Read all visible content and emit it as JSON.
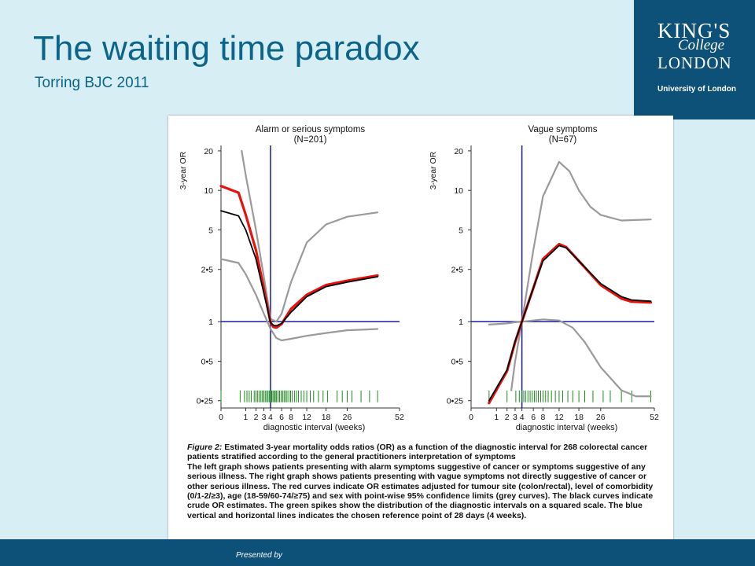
{
  "slide": {
    "title": "The waiting time paradox",
    "subtitle": "Torring  BJC 2011",
    "footer_text": "Presented by"
  },
  "logo": {
    "line1": "KING'S",
    "line2": "College",
    "line3": "LONDON",
    "line4": "University of London"
  },
  "caption": {
    "label": "Figure 2:",
    "heading": "Estimated 3-year mortality odds ratios (OR) as a function of the diagnostic interval for 268 colorectal cancer patients stratified according to the general practitioners interpretation of symptoms",
    "body": "The left graph shows patients presenting with alarm symptoms suggestive of cancer or symptoms suggestive of any serious illness. The right graph shows patients presenting with vague symptoms not directly suggestive of cancer or other serious illness. The red curves indicate OR estimates adjusted for tumour site (colon/rectal), level of comorbidity (0/1-2/≥3), age (18-59/60-74/≥75) and sex with point-wise 95% confidence limits (grey curves). The black curves indicate crude OR estimates. The green spikes show the distribution of the diagnostic intervals on a squared scale. The blue vertical and horizontal lines indicates the chosen reference point of 28 days (4 weeks)."
  },
  "colors": {
    "adjusted": "#e8120c",
    "crude": "#000000",
    "ci": "#9a9a9a",
    "reference": "#1a1aa6",
    "spikes": "#1f8a1f"
  },
  "chart_data": [
    {
      "type": "line",
      "title": "Alarm or serious symptoms",
      "subtitle": "(N=201)",
      "ylabel": "3-year OR",
      "xlabel": "diagnostic interval (weeks)",
      "y_scale": "log",
      "x_scale": "sqrt",
      "xlim": [
        0,
        52
      ],
      "ylim": [
        0.22,
        22
      ],
      "xticks": [
        0,
        1,
        2,
        3,
        4,
        6,
        8,
        12,
        18,
        26,
        52
      ],
      "xtick_labels": [
        "0",
        "1",
        "2",
        "3",
        "4",
        "6",
        "8",
        "12",
        "18",
        "26",
        "52"
      ],
      "yticks": [
        0.25,
        0.5,
        1,
        2.5,
        5,
        10,
        20
      ],
      "ytick_labels": [
        "0•25",
        "0•5",
        "1",
        "2•5",
        "5",
        "10",
        "20"
      ],
      "reference": {
        "x": 4,
        "y": 1
      },
      "series": [
        {
          "role": "adjusted",
          "x": [
            0,
            0.5,
            1,
            2,
            3,
            4,
            4.5,
            5,
            6,
            8,
            12,
            18,
            26,
            40
          ],
          "y": [
            10.8,
            9.6,
            6.5,
            3.5,
            1.8,
            0.98,
            0.91,
            0.9,
            0.96,
            1.25,
            1.6,
            1.9,
            2.05,
            2.25
          ]
        },
        {
          "role": "crude",
          "x": [
            0,
            0.5,
            1,
            2,
            3,
            4,
            4.5,
            5,
            6,
            8,
            12,
            18,
            26,
            40
          ],
          "y": [
            7.0,
            6.4,
            5.0,
            3.0,
            1.65,
            0.98,
            0.94,
            0.93,
            0.97,
            1.18,
            1.55,
            1.85,
            2.0,
            2.2
          ]
        },
        {
          "role": "ci-upper",
          "x": [
            0.7,
            1,
            2,
            3,
            4,
            5,
            6,
            8,
            12,
            18,
            26,
            40
          ],
          "y": [
            20,
            13,
            5,
            2.2,
            1.05,
            1.0,
            1.15,
            2.0,
            4.0,
            5.5,
            6.3,
            6.8
          ]
        },
        {
          "role": "ci-lower",
          "x": [
            0,
            0.5,
            1,
            2,
            3,
            4,
            5,
            6,
            8,
            12,
            18,
            26,
            40
          ],
          "y": [
            3.0,
            2.8,
            2.3,
            1.6,
            1.15,
            0.88,
            0.75,
            0.72,
            0.74,
            0.78,
            0.82,
            0.86,
            0.88
          ]
        }
      ],
      "spikes_x": [
        0,
        0.6,
        0.9,
        1.1,
        1.3,
        1.5,
        1.8,
        2.0,
        2.2,
        2.4,
        2.6,
        2.8,
        3.0,
        3.2,
        3.4,
        3.6,
        3.8,
        4.0,
        4.2,
        4.4,
        4.6,
        4.8,
        5.0,
        5.3,
        5.6,
        5.9,
        6.2,
        6.5,
        6.8,
        7.1,
        7.5,
        7.9,
        8.3,
        8.8,
        9.3,
        9.8,
        10.5,
        11.2,
        12,
        13,
        14,
        15.5,
        17,
        18.5,
        22,
        24,
        26,
        28,
        32,
        36,
        40
      ]
    },
    {
      "type": "line",
      "title": "Vague symptoms",
      "subtitle": "(N=67)",
      "ylabel": "3-year OR",
      "xlabel": "diagnostic interval (weeks)",
      "y_scale": "log",
      "x_scale": "sqrt",
      "xlim": [
        0,
        52
      ],
      "ylim": [
        0.22,
        22
      ],
      "xticks": [
        0,
        1,
        2,
        3,
        4,
        6,
        8,
        12,
        18,
        26,
        52
      ],
      "xtick_labels": [
        "0",
        "1",
        "2",
        "3",
        "4",
        "6",
        "8",
        "12",
        "18",
        "26",
        "52"
      ],
      "yticks": [
        0.25,
        0.5,
        1,
        2.5,
        5,
        10,
        20
      ],
      "ytick_labels": [
        "0•25",
        "0•5",
        "1",
        "2•5",
        "5",
        "10",
        "20"
      ],
      "reference": {
        "x": 4,
        "y": 1
      },
      "series": [
        {
          "role": "adjusted",
          "x": [
            0.5,
            2,
            3,
            4,
            6,
            8,
            12,
            14,
            18,
            26,
            35,
            40,
            50
          ],
          "y": [
            0.24,
            0.42,
            0.7,
            1.0,
            1.8,
            3.0,
            3.9,
            3.7,
            2.9,
            1.9,
            1.5,
            1.42,
            1.4
          ]
        },
        {
          "role": "crude",
          "x": [
            0.5,
            2,
            3,
            4,
            6,
            8,
            12,
            14,
            18,
            26,
            35,
            40,
            50
          ],
          "y": [
            0.25,
            0.43,
            0.71,
            1.0,
            1.8,
            2.9,
            3.8,
            3.65,
            2.9,
            1.95,
            1.55,
            1.46,
            1.43
          ]
        },
        {
          "role": "ci-upper",
          "x": [
            2.5,
            3,
            4,
            6,
            8,
            12,
            15,
            18,
            22,
            26,
            35,
            50
          ],
          "y": [
            0.3,
            0.5,
            1.0,
            3.5,
            9.0,
            16.5,
            14.0,
            10.0,
            7.5,
            6.5,
            5.9,
            6.0
          ]
        },
        {
          "role": "ci-lower",
          "x": [
            0.5,
            2,
            3,
            4,
            6,
            8,
            12,
            16,
            20,
            26,
            35,
            42,
            50
          ],
          "y": [
            0.95,
            0.97,
            0.99,
            1.0,
            1.02,
            1.04,
            1.02,
            0.9,
            0.7,
            0.45,
            0.3,
            0.27,
            0.27
          ]
        }
      ],
      "spikes_x": [
        0.5,
        2,
        3.1,
        3.6,
        4.0,
        4.3,
        4.6,
        5.0,
        5.4,
        5.8,
        6.2,
        6.6,
        7.0,
        7.5,
        8.0,
        8.6,
        9.2,
        10,
        11,
        12,
        13,
        14.5,
        16,
        18,
        20,
        23,
        27,
        30,
        35,
        40,
        50
      ]
    }
  ]
}
